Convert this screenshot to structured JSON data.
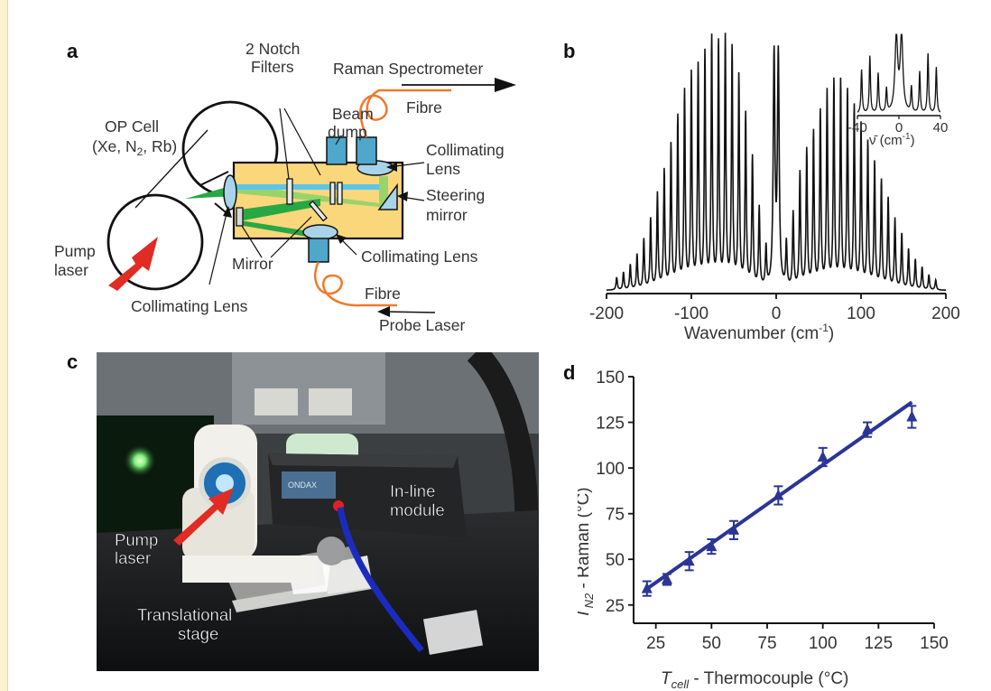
{
  "panel_labels": {
    "a": "a",
    "b": "b",
    "c": "c",
    "d": "d"
  },
  "panel_a": {
    "labels": {
      "notch_filters_1": "2 Notch",
      "notch_filters_2": "Filters",
      "raman_spectrometer": "Raman Spectrometer",
      "op_cell_1": "OP Cell",
      "op_cell_2": "(Xe, N",
      "op_cell_sub": "2",
      "op_cell_3": ", Rb)",
      "beam_dump_1": "Beam",
      "beam_dump_2": "dump",
      "fibre_top": "Fibre",
      "collimating_lens_right_1": "Collimating",
      "collimating_lens_right_2": "Lens",
      "steering_mirror_1": "Steering",
      "steering_mirror_2": "mirror",
      "pump_laser_1": "Pump",
      "pump_laser_2": "laser",
      "mirror": "Mirror",
      "collimating_lens_bottom": "Collimating Lens",
      "collimating_lens_left": "Collimating Lens",
      "fibre_bottom": "Fibre",
      "probe_laser": "Probe Laser"
    },
    "colors": {
      "box": "#fbd77c",
      "green_beam": "#27a844",
      "light_green_beam": "#9ad36b",
      "blue_beam": "#5bc6ea",
      "optic": "#a9d3e8",
      "fibre": "#f07a2c",
      "pump_arrow": "#e02c25",
      "block": "#4fa7c9"
    }
  },
  "panel_b": {
    "xlabel": "Wavenumber (cm",
    "xlabel_sup": "-1",
    "xlabel_end": ")",
    "inset": {
      "xlabel": "ν̄ (cm",
      "xlabel_sup": "-1",
      "xlabel_end": ")",
      "ticks": [
        "-40",
        "0",
        "40"
      ]
    }
  },
  "panel_c": {
    "labels": {
      "pump_laser_1": "Pump",
      "pump_laser_2": "laser",
      "inline_1": "In-line",
      "inline_2": "module",
      "translational_1": "Translational",
      "translational_2": "stage",
      "brand": "ONDAX"
    },
    "arrow_color": "#e02c25"
  },
  "chart_data": [
    {
      "type": "line",
      "panel": "b",
      "xlabel": "Wavenumber (cm-1)",
      "ylabel": "",
      "xlim": [
        -200,
        200
      ],
      "x_ticks": [
        "-200",
        "-100",
        "0",
        "100",
        "200"
      ],
      "y_ticks": [],
      "grid": false,
      "line_color": "#111111",
      "series": [
        {
          "peaks": [
            [
              -188,
              0.05
            ],
            [
              -180,
              0.07
            ],
            [
              -172,
              0.1
            ],
            [
              -164,
              0.14
            ],
            [
              -156,
              0.2
            ],
            [
              -148,
              0.28
            ],
            [
              -140,
              0.38
            ],
            [
              -132,
              0.47
            ],
            [
              -124,
              0.57
            ],
            [
              -116,
              0.68
            ],
            [
              -108,
              0.78
            ],
            [
              -100,
              0.85
            ],
            [
              -92,
              0.88
            ],
            [
              -84,
              0.93
            ],
            [
              -76,
              0.99
            ],
            [
              -68,
              0.97
            ],
            [
              -60,
              1.0
            ],
            [
              -52,
              0.95
            ],
            [
              -44,
              0.84
            ],
            [
              -36,
              0.69
            ],
            [
              -28,
              0.52
            ],
            [
              -20,
              0.32
            ],
            [
              -12,
              0.16
            ],
            [
              -2.5,
              0.92
            ],
            [
              2.5,
              0.92
            ],
            [
              12,
              0.18
            ],
            [
              20,
              0.3
            ],
            [
              28,
              0.46
            ],
            [
              36,
              0.55
            ],
            [
              44,
              0.62
            ],
            [
              52,
              0.7
            ],
            [
              60,
              0.78
            ],
            [
              68,
              0.82
            ],
            [
              76,
              0.82
            ],
            [
              84,
              0.78
            ],
            [
              92,
              0.72
            ],
            [
              100,
              0.65
            ],
            [
              108,
              0.58
            ],
            [
              116,
              0.5
            ],
            [
              124,
              0.43
            ],
            [
              132,
              0.36
            ],
            [
              140,
              0.28
            ],
            [
              148,
              0.22
            ],
            [
              156,
              0.16
            ],
            [
              164,
              0.12
            ],
            [
              172,
              0.09
            ],
            [
              180,
              0.06
            ],
            [
              188,
              0.04
            ]
          ]
        }
      ],
      "inset": {
        "xlim": [
          -40,
          40
        ],
        "x_ticks": [
          "-40",
          "0",
          "40"
        ],
        "peaks": [
          [
            -36,
            0.55
          ],
          [
            -28,
            0.72
          ],
          [
            -20,
            0.5
          ],
          [
            -12,
            0.3
          ],
          [
            -2.5,
            0.95
          ],
          [
            2.5,
            0.95
          ],
          [
            12,
            0.32
          ],
          [
            20,
            0.52
          ],
          [
            28,
            0.75
          ],
          [
            36,
            0.58
          ]
        ]
      }
    },
    {
      "type": "scatter",
      "panel": "d",
      "xlabel": "T_cell - Thermocouple (°C)",
      "ylabel": "T_N2 - Raman (°C)",
      "xlim": [
        15,
        150
      ],
      "ylim": [
        15,
        150
      ],
      "x_ticks": [
        "25",
        "50",
        "75",
        "100",
        "125",
        "150"
      ],
      "y_ticks": [
        "25",
        "50",
        "75",
        "100",
        "125",
        "150"
      ],
      "grid": false,
      "series": [
        {
          "name": "",
          "marker": "triangle",
          "color": "#2b3596",
          "points": [
            {
              "x": 21,
              "y": 34,
              "err": 4
            },
            {
              "x": 30,
              "y": 39,
              "err": 3
            },
            {
              "x": 40,
              "y": 49,
              "err": 5
            },
            {
              "x": 50,
              "y": 57,
              "err": 4
            },
            {
              "x": 60,
              "y": 66,
              "err": 5
            },
            {
              "x": 80,
              "y": 85,
              "err": 5
            },
            {
              "x": 100,
              "y": 106,
              "err": 5
            },
            {
              "x": 120,
              "y": 121,
              "err": 4
            },
            {
              "x": 140,
              "y": 128,
              "err": 6
            }
          ]
        }
      ],
      "fit_line": {
        "x": [
          20,
          140
        ],
        "y": [
          33,
          136
        ],
        "color": "#2b3596"
      }
    }
  ]
}
